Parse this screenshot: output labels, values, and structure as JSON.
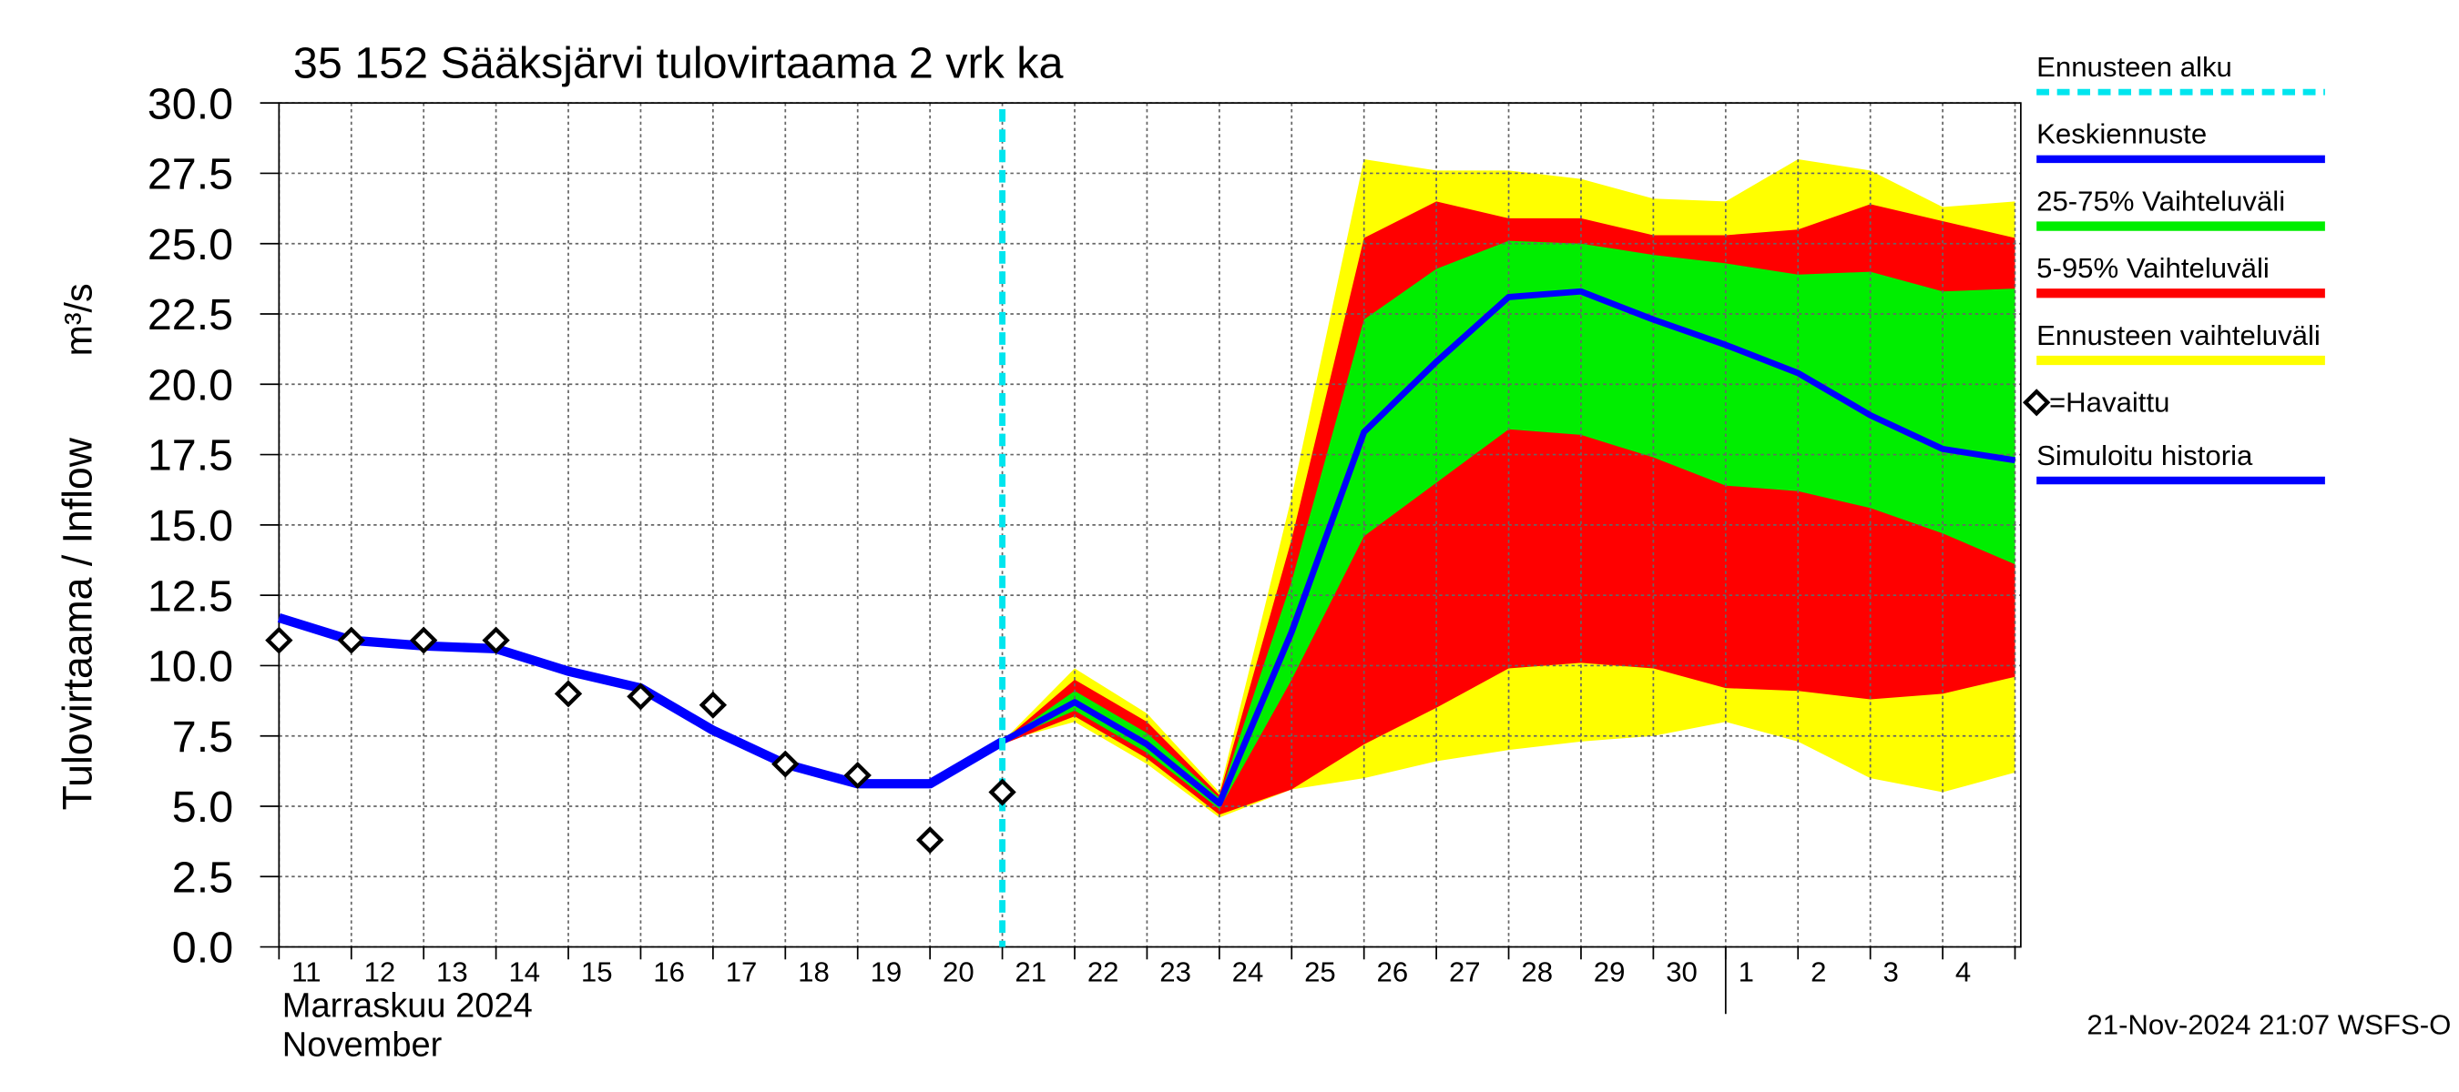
{
  "chart_data": {
    "type": "forecast",
    "title": "35 152 Sääksjärvi tulovirtaama 2 vrk ka",
    "ylabel": "Tulovirtaama / Inflow",
    "yunit": "m³/s",
    "xlabel_month": "Marraskuu 2024",
    "xlabel_month_en": "November",
    "timestamp": "21-Nov-2024 21:07 WSFS-O",
    "grid": true,
    "ylim": [
      0,
      30
    ],
    "yticks": [
      {
        "value": 0,
        "label": "0.0"
      },
      {
        "value": 2.5,
        "label": "2.5"
      },
      {
        "value": 5,
        "label": "5.0"
      },
      {
        "value": 7.5,
        "label": "7.5"
      },
      {
        "value": 10,
        "label": "10.0"
      },
      {
        "value": 12.5,
        "label": "12.5"
      },
      {
        "value": 15,
        "label": "15.0"
      },
      {
        "value": 17.5,
        "label": "17.5"
      },
      {
        "value": 20,
        "label": "20.0"
      },
      {
        "value": 22.5,
        "label": "22.5"
      },
      {
        "value": 25,
        "label": "25.0"
      },
      {
        "value": 27.5,
        "label": "27.5"
      },
      {
        "value": 30,
        "label": "30.0"
      }
    ],
    "categories": [
      "11",
      "12",
      "13",
      "14",
      "15",
      "16",
      "17",
      "18",
      "19",
      "20",
      "21",
      "22",
      "23",
      "24",
      "25",
      "26",
      "27",
      "28",
      "29",
      "30",
      "1",
      "2",
      "3",
      "4",
      null
    ],
    "forecast_start": {
      "name": "Ennusteen alku",
      "color": "#00e5ee"
    },
    "series": [
      {
        "name": "Keskiennuste",
        "color": "#0000ff",
        "kind": "forecast",
        "values": [
          null,
          null,
          null,
          null,
          null,
          null,
          null,
          null,
          null,
          null,
          7.3,
          8.7,
          7.2,
          5.1,
          11.2,
          18.3,
          20.8,
          23.1,
          23.3,
          22.3,
          21.4,
          20.4,
          18.9,
          17.7,
          17.3
        ]
      },
      {
        "name": "25-75% Vaihteluväli",
        "color": "#00ee00",
        "kind": "band",
        "upper": [
          null,
          null,
          null,
          null,
          null,
          null,
          null,
          null,
          null,
          null,
          7.3,
          9.1,
          7.6,
          5.3,
          13.0,
          22.3,
          24.1,
          25.1,
          25.0,
          24.6,
          24.3,
          23.9,
          24.0,
          23.3,
          23.4
        ],
        "lower": [
          null,
          null,
          null,
          null,
          null,
          null,
          null,
          null,
          null,
          null,
          7.3,
          8.4,
          6.9,
          4.9,
          9.5,
          14.6,
          16.5,
          18.4,
          18.2,
          17.4,
          16.4,
          16.2,
          15.6,
          14.7,
          13.6
        ]
      },
      {
        "name": "5-95% Vaihteluväli",
        "color": "#ff0000",
        "kind": "band",
        "upper": [
          null,
          null,
          null,
          null,
          null,
          null,
          null,
          null,
          null,
          null,
          7.3,
          9.5,
          8.0,
          5.4,
          14.5,
          25.2,
          26.5,
          25.9,
          25.9,
          25.3,
          25.3,
          25.5,
          26.4,
          25.8,
          25.2
        ],
        "lower": [
          null,
          null,
          null,
          null,
          null,
          null,
          null,
          null,
          null,
          null,
          7.2,
          8.2,
          6.7,
          4.7,
          5.6,
          7.2,
          8.5,
          9.9,
          10.1,
          9.9,
          9.2,
          9.1,
          8.8,
          9.0,
          9.6
        ]
      },
      {
        "name": "Ennusteen vaihteluväli",
        "color": "#ffff00",
        "kind": "band",
        "upper": [
          null,
          null,
          null,
          null,
          null,
          null,
          null,
          null,
          null,
          null,
          7.3,
          9.9,
          8.3,
          5.5,
          16.0,
          28.0,
          27.6,
          27.6,
          27.3,
          26.6,
          26.5,
          28.0,
          27.6,
          26.3,
          26.5
        ],
        "lower": [
          null,
          null,
          null,
          null,
          null,
          null,
          null,
          null,
          null,
          null,
          7.3,
          8.0,
          6.5,
          4.6,
          5.6,
          6.0,
          6.6,
          7.0,
          7.3,
          7.5,
          8.0,
          7.3,
          6.0,
          5.5,
          6.2
        ]
      },
      {
        "name": "=Havaittu",
        "color": "#000000",
        "kind": "observed",
        "values": [
          10.9,
          10.9,
          10.9,
          10.9,
          9.0,
          8.9,
          8.6,
          6.5,
          6.1,
          3.8,
          5.5,
          null,
          null,
          null,
          null,
          null,
          null,
          null,
          null,
          null,
          null,
          null,
          null,
          null,
          null
        ]
      },
      {
        "name": "Simuloitu historia",
        "color": "#0000ff",
        "kind": "history",
        "values": [
          11.7,
          10.9,
          10.7,
          10.6,
          9.8,
          9.2,
          7.7,
          6.5,
          5.8,
          5.8,
          7.3,
          null,
          null,
          null,
          null,
          null,
          null,
          null,
          null,
          null,
          null,
          null,
          null,
          null,
          null
        ]
      }
    ]
  }
}
